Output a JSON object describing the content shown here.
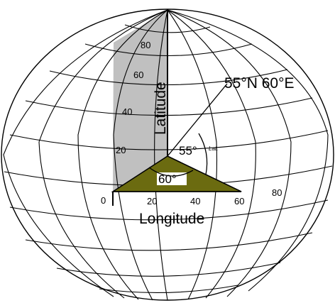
{
  "point_label": "55°N 60°E",
  "latitude_axis": {
    "title": "Latitude",
    "ticks": [
      "20",
      "40",
      "60",
      "80"
    ]
  },
  "longitude_axis": {
    "title": "Longitude",
    "ticks": [
      "0",
      "20",
      "40",
      "60",
      "80"
    ]
  },
  "angles": {
    "latitude_angle": "55°",
    "latitude_angle_note": "Lat.",
    "longitude_angle": "60°"
  },
  "colors": {
    "latitude_plane": "#c0c0c0",
    "longitude_wedge": "#6b6b10",
    "grid": "#000000"
  }
}
